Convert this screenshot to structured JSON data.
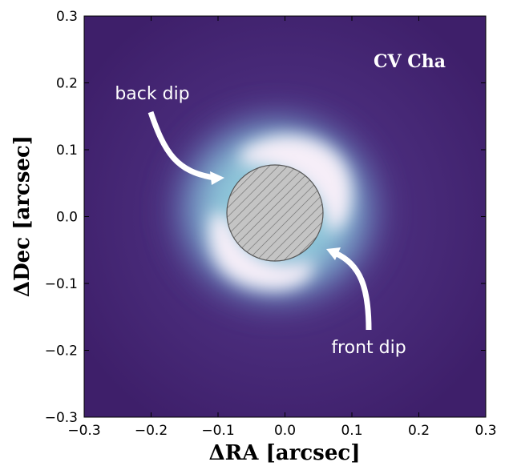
{
  "chart_data": {
    "type": "image",
    "title": "CV Cha",
    "xlabel": "ΔRA [arcsec]",
    "ylabel": "ΔDec [arcsec]",
    "annotations": [
      "back dip",
      "front dip"
    ],
    "xlim": [
      -0.3,
      0.3
    ],
    "ylim": [
      -0.3,
      0.3
    ],
    "xticks": [
      {
        "value": -0.3,
        "label": "−0.3"
      },
      {
        "value": -0.2,
        "label": "−0.2"
      },
      {
        "value": -0.1,
        "label": "−0.1"
      },
      {
        "value": 0,
        "label": "0.0"
      },
      0.1,
      0.2,
      0.3
    ],
    "yticks": [
      {
        "value": -0.3,
        "label": "−0.3"
      },
      {
        "value": -0.2,
        "label": "−0.2"
      },
      {
        "value": -0.1,
        "label": "−0.1"
      },
      {
        "value": 0,
        "label": "0.0"
      },
      0.1,
      0.2,
      0.3
    ]
  }
}
